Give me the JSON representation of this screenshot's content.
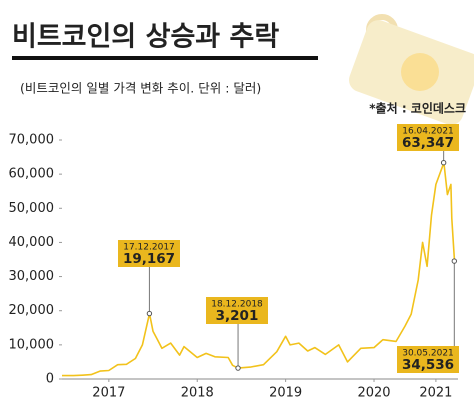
{
  "chart_data": {
    "type": "line",
    "title": "비트코인의 상승과 추락",
    "subtitle": "(비트코인의 일별 가격 변화 추이. 단위 :  달러)",
    "source": "*출처 :  코인데스크",
    "color": "#f2c21b",
    "x": [
      2016.97,
      2017.1,
      2017.2,
      2017.3,
      2017.4,
      2017.5,
      2017.6,
      2017.7,
      2017.8,
      2017.88,
      2017.96,
      2018.0,
      2018.05,
      2018.1,
      2018.2,
      2018.3,
      2018.35,
      2018.5,
      2018.6,
      2018.7,
      2018.85,
      2018.9,
      2018.96,
      2019.1,
      2019.25,
      2019.4,
      2019.5,
      2019.55,
      2019.65,
      2019.75,
      2019.83,
      2019.95,
      2020.1,
      2020.2,
      2020.35,
      2020.5,
      2020.6,
      2020.75,
      2020.85,
      2020.92,
      2021.0,
      2021.05,
      2021.1,
      2021.15,
      2021.2,
      2021.29,
      2021.33,
      2021.37,
      2021.38,
      2021.41
    ],
    "values": [
      1000,
      1000,
      1100,
      1300,
      2300,
      2500,
      4200,
      4300,
      6000,
      10000,
      19167,
      14000,
      11500,
      9000,
      10500,
      7000,
      9500,
      6300,
      7500,
      6500,
      6300,
      4000,
      3201,
      3500,
      4200,
      8000,
      12500,
      10000,
      10500,
      8200,
      9200,
      7200,
      10000,
      5000,
      9000,
      9200,
      11500,
      11000,
      15500,
      19000,
      29000,
      40000,
      33000,
      48000,
      57000,
      63347,
      54000,
      57000,
      47000,
      34536
    ],
    "xlim": [
      2016.97,
      2021.45
    ],
    "xticks": [
      {
        "value": 2017.5,
        "label": "2017"
      },
      {
        "value": 2018.5,
        "label": "2018"
      },
      {
        "value": 2019.5,
        "label": "2019"
      },
      {
        "value": 2020.5,
        "label": "2020"
      },
      {
        "value": 2021.2,
        "label": "2021"
      }
    ],
    "ylim": [
      0,
      70000
    ],
    "yticks": [
      0,
      {
        "value": 10000,
        "label": "10,000"
      },
      {
        "value": 20000,
        "label": "20,000"
      },
      {
        "value": 30000,
        "label": "30,000"
      },
      {
        "value": 40000,
        "label": "40,000"
      },
      {
        "value": 50000,
        "label": "50,000"
      },
      {
        "value": 60000,
        "label": "60,000"
      },
      {
        "value": 70000,
        "label": "70,000"
      }
    ],
    "annotations": [
      {
        "date": "17.12.2017",
        "value": 19167,
        "value_label": "19,167"
      },
      {
        "date": "18.12.2018",
        "value": 3201,
        "value_label": "3,201"
      },
      {
        "date": "16.04.2021",
        "value": 63347,
        "value_label": "63,347"
      },
      {
        "date": "30.05.2021",
        "value": 34536,
        "value_label": "34,536"
      }
    ]
  }
}
